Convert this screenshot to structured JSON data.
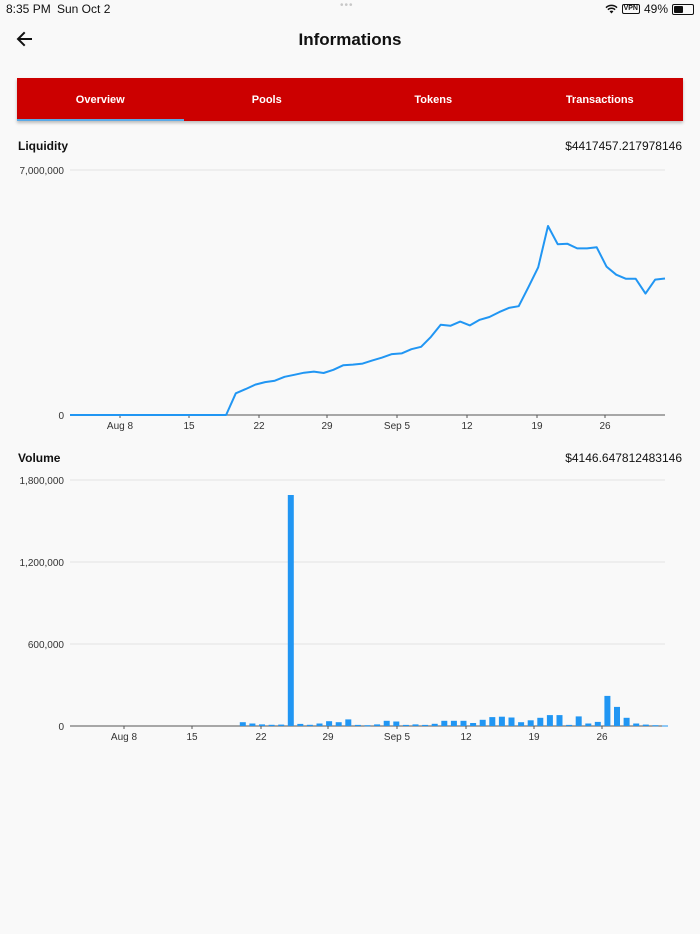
{
  "status_bar": {
    "time": "8:35 PM",
    "date": "Sun Oct 2",
    "vpn": "VPN",
    "battery": "49%",
    "battery_level": 0.49
  },
  "header": {
    "title": "Informations",
    "back_icon": "arrow-left-icon"
  },
  "tabs": [
    {
      "label": "Overview",
      "active": true
    },
    {
      "label": "Pools",
      "active": false
    },
    {
      "label": "Tokens",
      "active": false
    },
    {
      "label": "Transactions",
      "active": false
    }
  ],
  "colors": {
    "tab_bar": "#cc0000",
    "tab_indicator": "#5aa9e6",
    "series": "#2196f3",
    "grid": "#e4e4e4"
  },
  "liquidity": {
    "label": "Liquidity",
    "value": "$4417457.217978146"
  },
  "volume": {
    "label": "Volume",
    "value": "$4146.647812483146"
  },
  "chart_data": [
    {
      "type": "line",
      "title": "Liquidity",
      "x_tick_labels": [
        "Aug 8",
        "15",
        "22",
        "29",
        "Sep 5",
        "12",
        "19",
        "26"
      ],
      "y_tick_labels": [
        "0",
        "7,000,000"
      ],
      "ylim": [
        0,
        7000000
      ],
      "grid": true,
      "series": [
        {
          "values": [
            0,
            0,
            0,
            0,
            0,
            0,
            0,
            0,
            0,
            0,
            0,
            0,
            0,
            0,
            0,
            0,
            0,
            620000,
            740000,
            870000,
            940000,
            980000,
            1090000,
            1150000,
            1210000,
            1240000,
            1200000,
            1290000,
            1420000,
            1440000,
            1470000,
            1560000,
            1640000,
            1740000,
            1760000,
            1880000,
            1950000,
            2230000,
            2580000,
            2550000,
            2670000,
            2560000,
            2720000,
            2800000,
            2940000,
            3060000,
            3110000,
            3650000,
            4220000,
            5400000,
            4880000,
            4890000,
            4760000,
            4760000,
            4790000,
            4240000,
            4010000,
            3890000,
            3890000,
            3470000,
            3870000,
            3900000
          ]
        }
      ]
    },
    {
      "type": "bar",
      "title": "Volume",
      "x_tick_labels": [
        "Aug 8",
        "15",
        "22",
        "29",
        "Sep 5",
        "12",
        "19",
        "26"
      ],
      "y_tick_labels": [
        "0",
        "600,000",
        "1,200,000",
        "1,800,000"
      ],
      "ylim": [
        0,
        1800000
      ],
      "grid": true,
      "series": [
        {
          "values": [
            0,
            0,
            0,
            0,
            0,
            0,
            0,
            0,
            0,
            0,
            0,
            0,
            0,
            0,
            0,
            0,
            0,
            0,
            28000,
            18000,
            12000,
            9000,
            10000,
            1690000,
            15000,
            9000,
            18000,
            35000,
            28000,
            48000,
            8000,
            6000,
            12000,
            38000,
            33000,
            8000,
            12000,
            8000,
            16000,
            38000,
            38000,
            38000,
            22000,
            45000,
            65000,
            68000,
            62000,
            28000,
            42000,
            60000,
            80000,
            80000,
            8000,
            70000,
            18000,
            30000,
            220000,
            140000,
            60000,
            18000,
            10000,
            6000,
            4000
          ]
        }
      ]
    }
  ]
}
